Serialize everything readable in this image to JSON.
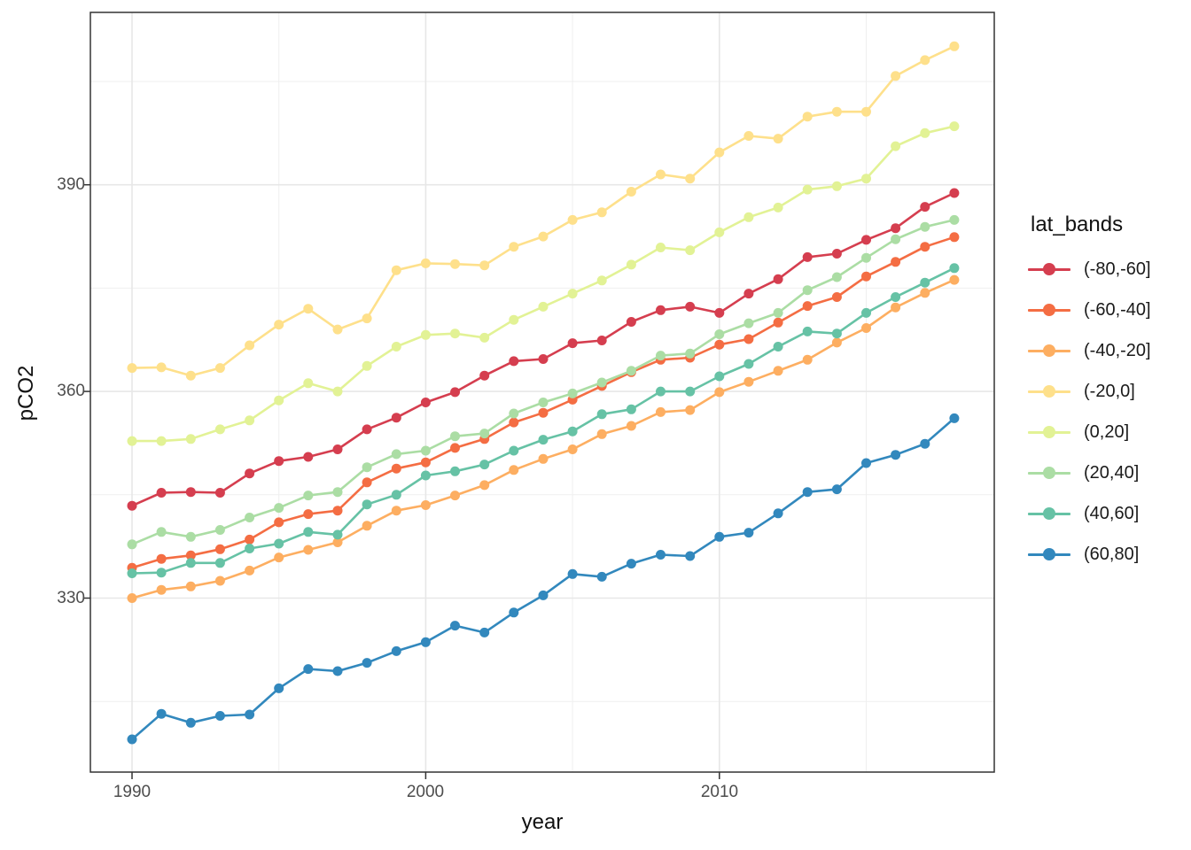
{
  "figure": {
    "background": "#ffffff",
    "panel_border_color": "#333333",
    "grid_major_color": "#e7e7e7",
    "grid_minor_color": "#efefef",
    "tick_color": "#333333",
    "axis_text_color": "#4d4d4d"
  },
  "axes": {
    "x": {
      "title": "year",
      "ticks": [
        {
          "label": "1990",
          "value": 1990
        },
        {
          "label": "2000",
          "value": 2000
        },
        {
          "label": "2010",
          "value": 2010
        }
      ],
      "minor_ticks": [
        1995,
        2005,
        2015
      ]
    },
    "y": {
      "title": "pCO2",
      "ticks": [
        {
          "label": "390",
          "value": 390
        },
        {
          "label": "360",
          "value": 360
        },
        {
          "label": "330",
          "value": 330
        }
      ],
      "minor_ticks": [
        315,
        345,
        375,
        405
      ]
    }
  },
  "legend": {
    "title": "lat_bands",
    "items": [
      {
        "label": "(-80,-60]",
        "color": "#d53e4f"
      },
      {
        "label": "(-60,-40]",
        "color": "#f46d43"
      },
      {
        "label": "(-40,-20]",
        "color": "#fdae61"
      },
      {
        "label": "(-20,0]",
        "color": "#fee08b"
      },
      {
        "label": "(0,20]",
        "color": "#e2f295"
      },
      {
        "label": "(20,40]",
        "color": "#abdda4"
      },
      {
        "label": "(40,60]",
        "color": "#66c2a5"
      },
      {
        "label": "(60,80]",
        "color": "#3288bd"
      }
    ]
  },
  "chart_data": {
    "type": "line",
    "title": "",
    "xlabel": "year",
    "ylabel": "pCO2",
    "xlim": [
      1988.6,
      2019.4
    ],
    "ylim": [
      304.5,
      415.2
    ],
    "grid": true,
    "legend_position": "right",
    "marker": "circle",
    "x": [
      1990,
      1991,
      1992,
      1993,
      1994,
      1995,
      1996,
      1997,
      1998,
      1999,
      2000,
      2001,
      2002,
      2003,
      2004,
      2005,
      2006,
      2007,
      2008,
      2009,
      2010,
      2011,
      2012,
      2013,
      2014,
      2015,
      2016,
      2017,
      2018
    ],
    "series": [
      {
        "name": "(-80,-60]",
        "color": "#d53e4f",
        "values": [
          343.4,
          345.3,
          345.4,
          345.3,
          348.1,
          349.9,
          350.5,
          351.6,
          354.5,
          356.2,
          358.4,
          359.9,
          362.3,
          364.4,
          364.7,
          367.0,
          367.4,
          370.1,
          371.8,
          372.3,
          371.4,
          374.2,
          376.3,
          379.5,
          380.0,
          382.0,
          383.7,
          386.8,
          388.8
        ]
      },
      {
        "name": "(-60,-40]",
        "color": "#f46d43",
        "values": [
          334.4,
          335.7,
          336.2,
          337.1,
          338.5,
          341.0,
          342.2,
          342.7,
          346.8,
          348.8,
          349.7,
          351.8,
          353.1,
          355.5,
          356.9,
          358.8,
          360.8,
          362.8,
          364.6,
          364.9,
          366.8,
          367.6,
          370.0,
          372.4,
          373.7,
          376.7,
          378.8,
          381.0,
          382.4
        ]
      },
      {
        "name": "(-40,-20]",
        "color": "#fdae61",
        "values": [
          330.0,
          331.2,
          331.7,
          332.5,
          334.0,
          335.9,
          337.0,
          338.1,
          340.5,
          342.7,
          343.5,
          344.9,
          346.4,
          348.6,
          350.2,
          351.6,
          353.8,
          355.0,
          357.0,
          357.3,
          359.9,
          361.4,
          363.0,
          364.6,
          367.1,
          369.2,
          372.2,
          374.3,
          376.2
        ]
      },
      {
        "name": "(-20,0]",
        "color": "#fee08b",
        "values": [
          363.4,
          363.5,
          362.3,
          363.4,
          366.7,
          369.7,
          372.0,
          369.0,
          370.6,
          377.6,
          378.6,
          378.5,
          378.3,
          381.0,
          382.5,
          384.9,
          386.0,
          389.0,
          391.5,
          390.9,
          394.7,
          397.1,
          396.7,
          399.9,
          400.6,
          400.6,
          405.8,
          408.1,
          410.1
        ]
      },
      {
        "name": "(0,20]",
        "color": "#e2f295",
        "values": [
          352.8,
          352.8,
          353.1,
          354.5,
          355.8,
          358.7,
          361.2,
          360.0,
          363.7,
          366.5,
          368.2,
          368.4,
          367.8,
          370.4,
          372.3,
          374.2,
          376.1,
          378.4,
          380.9,
          380.5,
          383.1,
          385.3,
          386.7,
          389.3,
          389.8,
          390.9,
          395.6,
          397.5,
          398.5
        ]
      },
      {
        "name": "(20,40]",
        "color": "#abdda4",
        "values": [
          337.8,
          339.6,
          338.9,
          339.9,
          341.7,
          343.1,
          344.9,
          345.4,
          349.0,
          350.9,
          351.4,
          353.5,
          353.9,
          356.8,
          358.4,
          359.7,
          361.3,
          363.0,
          365.2,
          365.5,
          368.3,
          369.9,
          371.4,
          374.7,
          376.6,
          379.4,
          382.1,
          383.9,
          384.9
        ]
      },
      {
        "name": "(40,60]",
        "color": "#66c2a5",
        "values": [
          333.6,
          333.7,
          335.1,
          335.1,
          337.2,
          337.9,
          339.6,
          339.2,
          343.6,
          345.0,
          347.8,
          348.4,
          349.4,
          351.4,
          353.0,
          354.2,
          356.7,
          357.4,
          360.0,
          360.0,
          362.2,
          364.0,
          366.5,
          368.7,
          368.4,
          371.4,
          373.7,
          375.8,
          377.9
        ]
      },
      {
        "name": "(60,80]",
        "color": "#3288bd",
        "values": [
          309.5,
          313.2,
          311.9,
          312.9,
          313.1,
          316.9,
          319.7,
          319.4,
          320.6,
          322.3,
          323.6,
          326.0,
          325.0,
          327.9,
          330.4,
          333.5,
          333.1,
          335.0,
          336.3,
          336.1,
          338.9,
          339.5,
          342.3,
          345.4,
          345.8,
          349.6,
          350.8,
          352.4,
          356.1
        ]
      }
    ]
  }
}
